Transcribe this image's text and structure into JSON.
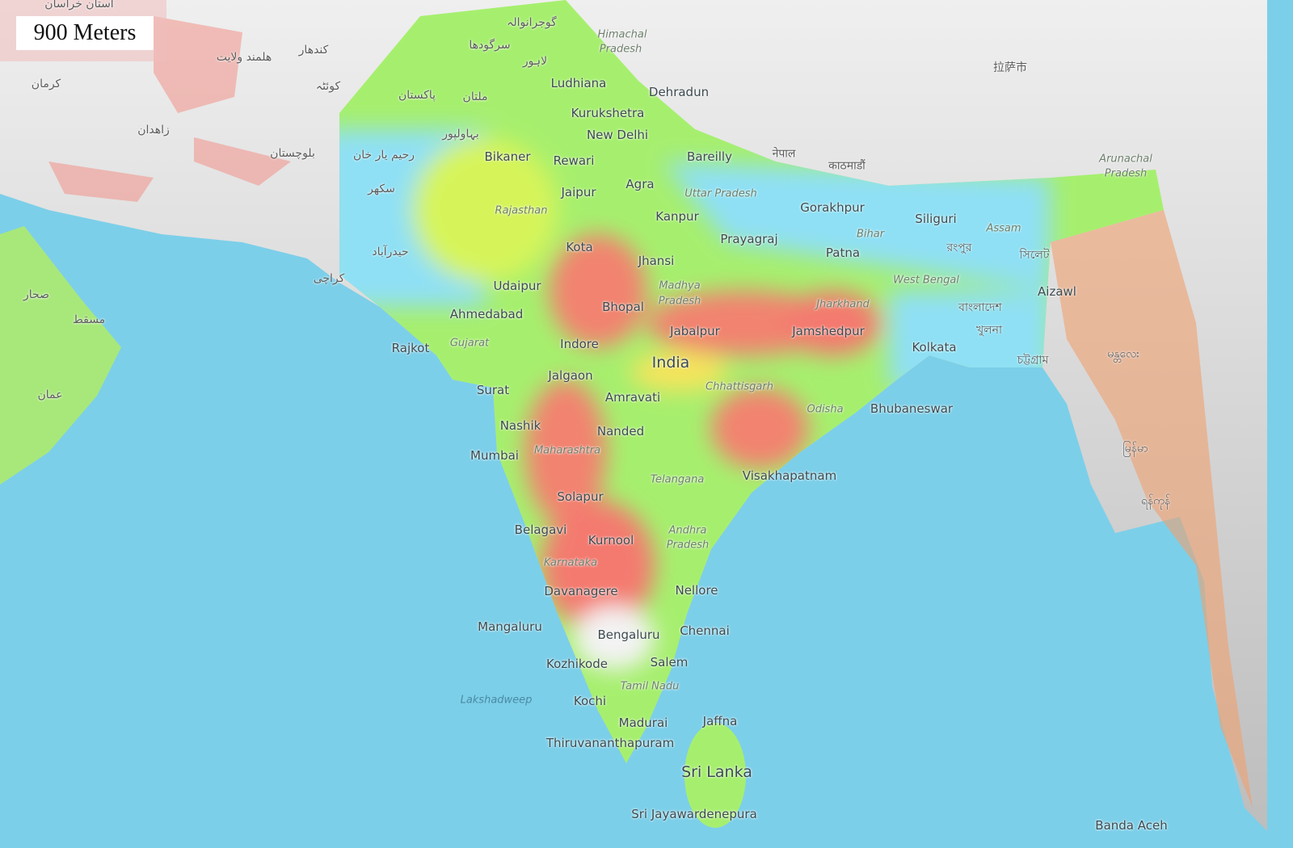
{
  "scale_label": "900 Meters",
  "colors": {
    "sea": "#7ccfe9",
    "lowland": "#8fe0f5",
    "plains": "#9ef07a",
    "upland": "#f08070",
    "mountains": "#d8d8d8"
  },
  "labels": {
    "cities": [
      "Ludhiana",
      "Dehradun",
      "Kurukshetra",
      "New Delhi",
      "Bikaner",
      "Rewari",
      "Bareilly",
      "Jaipur",
      "Agra",
      "Kanpur",
      "Gorakhpur",
      "Siliguri",
      "Prayagraj",
      "Kota",
      "Jhansi",
      "Patna",
      "Udaipur",
      "Bhopal",
      "Ahmedabad",
      "Jabalpur",
      "Jamshedpur",
      "Rajkot",
      "Indore",
      "Kolkata",
      "Jalgaon",
      "Surat",
      "Amravati",
      "Bhubaneswar",
      "Nashik",
      "Nanded",
      "Mumbai",
      "Visakhapatnam",
      "Solapur",
      "Belagavi",
      "Kurnool",
      "Nellore",
      "Davanagere",
      "Mangaluru",
      "Bengaluru",
      "Chennai",
      "Kozhikode",
      "Salem",
      "Kochi",
      "Jaffna",
      "Madurai",
      "Thiruvananthapuram",
      "Sri Jayawardenepura",
      "Aizawl",
      "Banda Aceh"
    ],
    "countries": [
      "India",
      "Sri Lanka"
    ],
    "states": [
      "Himachal",
      "Pradesh",
      "Rajasthan",
      "Uttar Pradesh",
      "Bihar",
      "Assam",
      "Arunachal",
      "Pradesh",
      "Madhya",
      "Pradesh",
      "Jharkhand",
      "West Bengal",
      "Gujarat",
      "Chhattisgarh",
      "Odisha",
      "Maharashtra",
      "Telangana",
      "Andhra",
      "Pradesh",
      "Karnataka",
      "Tamil Nadu"
    ],
    "water": [
      "Lakshadweep"
    ],
    "foreign": [
      "ملتان",
      "لاہور",
      "سرگودھا",
      "گوجرانوالہ",
      "بہاولپور",
      "رحیم یار خان",
      "سکھر",
      "حیدرآباد",
      "کراچی",
      "پاکستان",
      "کوئٹہ",
      "کندھار",
      "زاهدان",
      "کرمان",
      "عمان",
      "مسقط",
      "صحار",
      "नेपाल",
      "काठमाडौं",
      "বাংলাদেশ",
      "খুলনা",
      "চট্টগ্রাম",
      "রংপুর",
      "সিলেট",
      "拉萨市",
      "မြန်မာ",
      "ရန်ကုန်",
      "မန္တလေး",
      "استان خراسان",
      "هلمند ولایت",
      "بلوچستان"
    ]
  }
}
